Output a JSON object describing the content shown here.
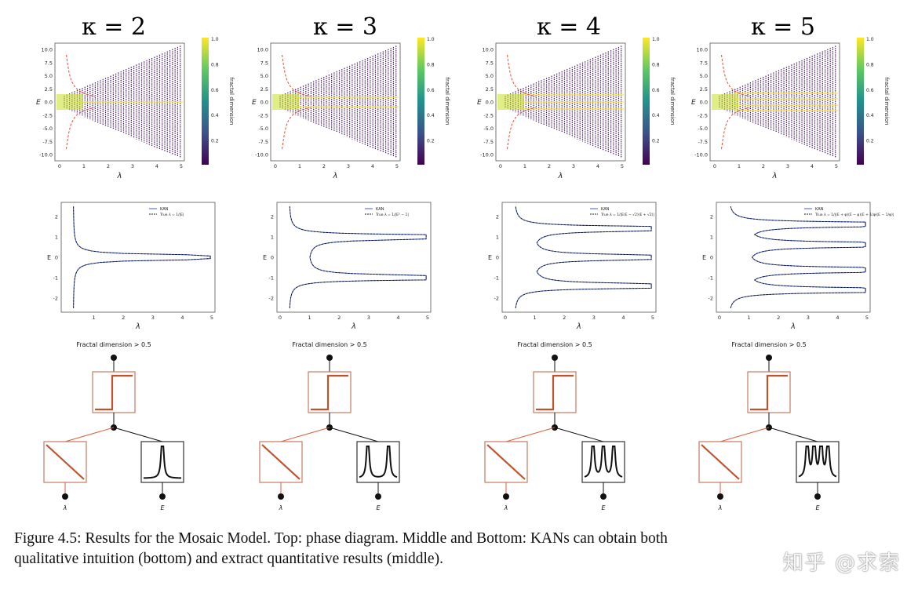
{
  "columns": [
    {
      "kappa_title": "κ = 2",
      "peaks": 1,
      "top_ylabel": "E",
      "top_xlabel": "λ",
      "top_yticks": [
        "10.0",
        "7.5",
        "5.0",
        "2.5",
        "0.0",
        "-2.5",
        "-5.0",
        "-7.5",
        "-10.0"
      ],
      "top_xticks": [
        "0",
        "1",
        "2",
        "3",
        "4",
        "5"
      ],
      "colorbar_label": "fractal dimension",
      "colorbar_ticks": [
        "1.0",
        "0.8",
        "0.6",
        "0.4",
        "0.2"
      ],
      "mid_ylabel": "E",
      "mid_xlabel": "λ",
      "mid_yticks": [
        "2",
        "1",
        "0",
        "-1",
        "-2"
      ],
      "mid_xticks": [
        "1",
        "2",
        "3",
        "4",
        "5"
      ],
      "legend_kan": "KAN",
      "legend_true": "True λ = 1/|E|",
      "tree_title": "Fractal dimension > 0.5",
      "leaf_lambda": "λ",
      "leaf_e": "E"
    },
    {
      "kappa_title": "κ = 3",
      "peaks": 2,
      "top_ylabel": "E",
      "top_xlabel": "λ",
      "top_yticks": [
        "10.0",
        "7.5",
        "5.0",
        "2.5",
        "0.0",
        "-2.5",
        "-5.0",
        "-7.5",
        "-10.0"
      ],
      "top_xticks": [
        "0",
        "1",
        "2",
        "3",
        "4",
        "5"
      ],
      "colorbar_label": "fractal dimension",
      "colorbar_ticks": [
        "1.0",
        "0.8",
        "0.6",
        "0.4",
        "0.2"
      ],
      "mid_ylabel": "E",
      "mid_xlabel": "λ",
      "mid_yticks": [
        "2",
        "1",
        "0",
        "-1",
        "-2"
      ],
      "mid_xticks": [
        "0",
        "1",
        "2",
        "3",
        "4",
        "5"
      ],
      "legend_kan": "KAN",
      "legend_true": "True λ = 1/|E² − 1|",
      "tree_title": "Fractal dimension > 0.5",
      "leaf_lambda": "λ",
      "leaf_e": "E"
    },
    {
      "kappa_title": "κ = 4",
      "peaks": 3,
      "top_ylabel": "E",
      "top_xlabel": "λ",
      "top_yticks": [
        "10.0",
        "7.5",
        "5.0",
        "2.5",
        "0.0",
        "-2.5",
        "-5.0",
        "-7.5",
        "-10.0"
      ],
      "top_xticks": [
        "0",
        "1",
        "2",
        "3",
        "4",
        "5"
      ],
      "colorbar_label": "fractal dimension",
      "colorbar_ticks": [
        "1.0",
        "0.8",
        "0.6",
        "0.4",
        "0.2"
      ],
      "mid_ylabel": "E",
      "mid_xlabel": "λ",
      "mid_yticks": [
        "2",
        "1",
        "0",
        "-1",
        "-2"
      ],
      "mid_xticks": [
        "0",
        "1",
        "2",
        "3",
        "4",
        "5"
      ],
      "legend_kan": "KAN",
      "legend_true": "True λ = 1/|E(E − √2)(E + √2)|",
      "tree_title": "Fractal dimension > 0.5",
      "leaf_lambda": "λ",
      "leaf_e": "E"
    },
    {
      "kappa_title": "κ = 5",
      "peaks": 4,
      "top_ylabel": "E",
      "top_xlabel": "λ",
      "top_yticks": [
        "10.0",
        "7.5",
        "5.0",
        "2.5",
        "0.0",
        "-2.5",
        "-5.0",
        "-7.5",
        "-10.0"
      ],
      "top_xticks": [
        "0",
        "1",
        "2",
        "3",
        "4",
        "5"
      ],
      "colorbar_label": "fractal dimension",
      "colorbar_ticks": [
        "1.0",
        "0.8",
        "0.6",
        "0.4",
        "0.2"
      ],
      "mid_ylabel": "E",
      "mid_xlabel": "λ",
      "mid_yticks": [
        "2",
        "1",
        "0",
        "-1",
        "-2"
      ],
      "mid_xticks": [
        "0",
        "1",
        "2",
        "3",
        "4",
        "5"
      ],
      "legend_kan": "KAN",
      "legend_true": "True λ = 1/|(E + φ)(E − φ)(E + 1/φ)(E − 1/φ)|",
      "tree_title": "Fractal dimension > 0.5",
      "leaf_lambda": "λ",
      "leaf_e": "E"
    }
  ],
  "caption_line1": "Figure 4.5: Results for the Mosaic Model. Top: phase diagram. Middle and Bottom: KANs can obtain both",
  "caption_line2": "qualitative intuition (bottom) and extract quantitative results (middle).",
  "watermark": "知乎 @求索",
  "colors": {
    "viridis_dark": "#440154",
    "viridis_light": "#fde725",
    "red_curve": "#e34a33",
    "kan_blue": "#3b5bdb",
    "node_orange": "#d9603b"
  }
}
